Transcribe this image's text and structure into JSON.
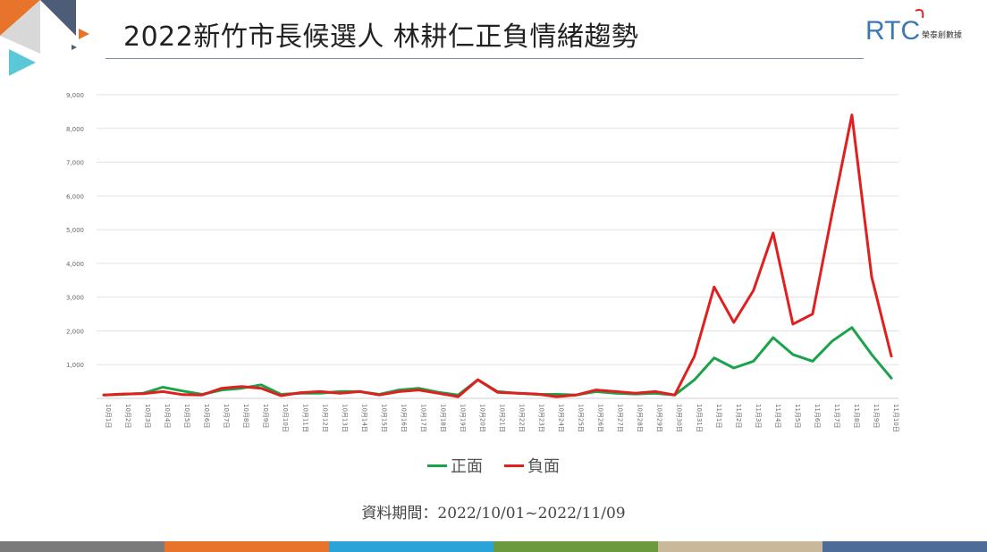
{
  "header": {
    "title": "2022新竹市長候選人 林耕仁正負情緒趨勢",
    "logo_text": "RTC",
    "logo_subtext": "榮泰創數據"
  },
  "footer": {
    "source": "資料期間：2022/10/01~2022/11/09"
  },
  "colors": {
    "positive": "#1aa34a",
    "negative": "#e01f1f",
    "grid": "#e2e2e2",
    "bottom_bar": [
      "#7a7a7a",
      "#e8732a",
      "#2aa3d9",
      "#6b9a3e",
      "#c9b99a",
      "#4d6d98"
    ]
  },
  "chart_data": {
    "type": "line",
    "title": "",
    "xlabel": "",
    "ylabel": "",
    "ylim": [
      0,
      9000
    ],
    "y_ticks": [
      "1,000",
      "2,000",
      "3,000",
      "4,000",
      "5,000",
      "6,000",
      "7,000",
      "8,000",
      "9,000"
    ],
    "grid": true,
    "legend_position": "bottom",
    "categories": [
      "10月1日",
      "10月2日",
      "10月3日",
      "10月4日",
      "10月5日",
      "10月6日",
      "10月7日",
      "10月8日",
      "10月9日",
      "10月10日",
      "10月11日",
      "10月12日",
      "10月13日",
      "10月14日",
      "10月15日",
      "10月16日",
      "10月17日",
      "10月18日",
      "10月19日",
      "10月20日",
      "10月21日",
      "10月22日",
      "10月23日",
      "10月24日",
      "10月25日",
      "10月26日",
      "10月27日",
      "10月28日",
      "10月29日",
      "10月30日",
      "10月31日",
      "11月1日",
      "11月2日",
      "11月3日",
      "11月4日",
      "11月5日",
      "11月6日",
      "11月7日",
      "11月8日",
      "11月9日",
      "11月10日"
    ],
    "series": [
      {
        "name": "正面",
        "values": [
          100,
          120,
          150,
          330,
          220,
          120,
          250,
          300,
          400,
          120,
          150,
          150,
          200,
          200,
          120,
          250,
          300,
          180,
          100,
          550,
          200,
          150,
          120,
          120,
          100,
          200,
          150,
          130,
          150,
          100,
          550,
          1200,
          900,
          1100,
          1800,
          1300,
          1100,
          1700,
          2100,
          1300,
          600
        ]
      },
      {
        "name": "負面",
        "values": [
          100,
          130,
          140,
          200,
          110,
          100,
          300,
          350,
          300,
          80,
          170,
          200,
          150,
          200,
          100,
          200,
          250,
          150,
          50,
          550,
          180,
          150,
          130,
          50,
          100,
          250,
          200,
          150,
          200,
          100,
          1250,
          3300,
          2250,
          3200,
          4900,
          2200,
          2500,
          5500,
          8400,
          3600,
          1250
        ]
      }
    ]
  }
}
